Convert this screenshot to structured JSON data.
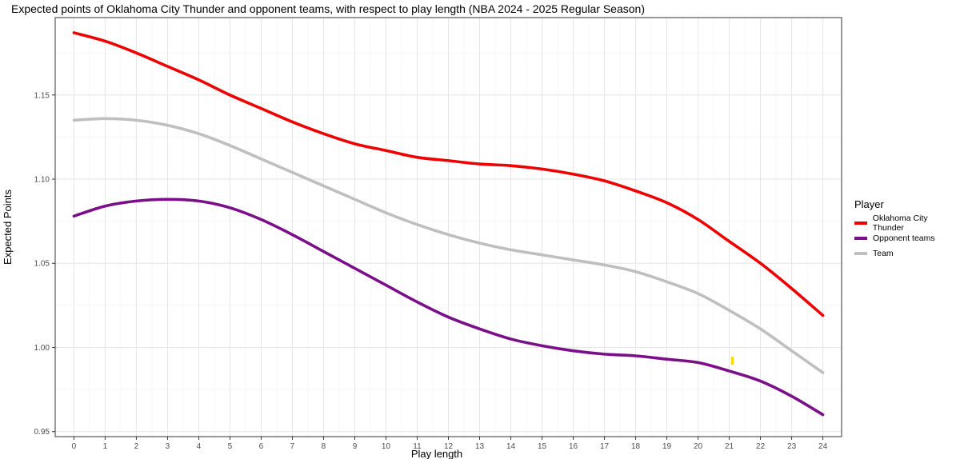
{
  "chart_data": {
    "type": "line",
    "title": "Expected points of Oklahoma City Thunder and opponent teams, with respect to play length (NBA 2024 - 2025 Regular Season)",
    "xlabel": "Play length",
    "ylabel": "Expected Points",
    "xlim": [
      -0.6,
      24.6
    ],
    "ylim": [
      0.947,
      1.196
    ],
    "x": [
      0,
      1,
      2,
      3,
      4,
      5,
      6,
      7,
      8,
      9,
      10,
      11,
      12,
      13,
      14,
      15,
      16,
      17,
      18,
      19,
      20,
      21,
      22,
      23,
      24
    ],
    "x_ticks": [
      0,
      1,
      2,
      3,
      4,
      5,
      6,
      7,
      8,
      9,
      10,
      11,
      12,
      13,
      14,
      15,
      16,
      17,
      18,
      19,
      20,
      21,
      22,
      23,
      24
    ],
    "y_ticks": [
      0.95,
      1.0,
      1.05,
      1.1,
      1.15
    ],
    "y_tick_labels": [
      "0.95",
      "1.00",
      "1.05",
      "1.10",
      "1.15"
    ],
    "grid": true,
    "legend_title": "Player",
    "legend_position": "right",
    "series": [
      {
        "name": "Oklahoma City Thunder",
        "color": "#ee0000",
        "values": [
          1.187,
          1.182,
          1.175,
          1.167,
          1.159,
          1.15,
          1.142,
          1.134,
          1.127,
          1.121,
          1.117,
          1.113,
          1.111,
          1.109,
          1.108,
          1.106,
          1.103,
          1.099,
          1.093,
          1.086,
          1.076,
          1.063,
          1.05,
          1.035,
          1.019
        ]
      },
      {
        "name": "Opponent teams",
        "color": "#7b0f8a",
        "values": [
          1.078,
          1.084,
          1.087,
          1.088,
          1.087,
          1.083,
          1.076,
          1.067,
          1.057,
          1.047,
          1.037,
          1.027,
          1.018,
          1.011,
          1.005,
          1.001,
          0.998,
          0.996,
          0.995,
          0.993,
          0.991,
          0.986,
          0.98,
          0.971,
          0.96
        ]
      },
      {
        "name": "Team",
        "color": "#bfbfbf",
        "values": [
          1.135,
          1.136,
          1.135,
          1.132,
          1.127,
          1.12,
          1.112,
          1.104,
          1.096,
          1.088,
          1.08,
          1.073,
          1.067,
          1.062,
          1.058,
          1.055,
          1.052,
          1.049,
          1.045,
          1.039,
          1.032,
          1.022,
          1.011,
          0.998,
          0.985
        ]
      }
    ],
    "annotations": [
      {
        "type": "marker",
        "x": 21.1,
        "y": 0.992,
        "color": "#ffd700"
      }
    ]
  }
}
